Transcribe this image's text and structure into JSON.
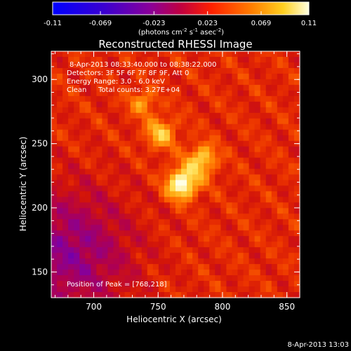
{
  "chart_data": {
    "type": "heatmap",
    "title": "Reconstructed RHESSI Image",
    "xlabel": "Heliocentric X (arcsec)",
    "ylabel": "Heliocentric Y (arcsec)",
    "xlim": [
      667,
      860
    ],
    "ylim": [
      130,
      322
    ],
    "x_ticks": [
      700,
      750,
      800,
      850
    ],
    "y_ticks": [
      150,
      200,
      250,
      300
    ],
    "colorbar": {
      "ticks": [
        "-0.11",
        "-0.069",
        "-0.023",
        "0.023",
        "0.069",
        "0.11"
      ],
      "tick_values": [
        -0.11,
        -0.069,
        -0.023,
        0.023,
        0.069,
        0.11
      ],
      "range": [
        -0.11,
        0.11
      ],
      "units_label": "(photons cm",
      "units_sup1": "-2",
      "units_mid": " s",
      "units_sup2": "-1",
      "units_mid2": " asec",
      "units_sup3": "-2",
      "units_end": ")"
    },
    "annotations": {
      "time_range": "8-Apr-2013 08:33:40.000 to 08:38:22.000",
      "detectors": "Detectors: 3F 5F 6F 7F 8F 9F, Att 0",
      "energy": "Energy Range: 3.0 - 6.0 keV",
      "clean_label": "Clean",
      "total_counts": "Total counts: 3.27E+04",
      "peak": "Position of Peak = [768,218]"
    },
    "peak_position": [
      768,
      218
    ],
    "sources": [
      {
        "x": 768,
        "y": 218,
        "amplitude": 0.09,
        "sigma": 8
      },
      {
        "x": 752,
        "y": 258,
        "amplitude": 0.055,
        "sigma": 8
      },
      {
        "x": 738,
        "y": 282,
        "amplitude": 0.04,
        "sigma": 7
      },
      {
        "x": 786,
        "y": 240,
        "amplitude": 0.04,
        "sigma": 7
      },
      {
        "x": 780,
        "y": 232,
        "amplitude": 0.035,
        "sigma": 9
      }
    ],
    "negative_region": {
      "x": 680,
      "y": 165,
      "amplitude": -0.05,
      "sigma": 35
    },
    "background_level": 0.025
  },
  "footer": {
    "timestamp": "8-Apr-2013 13:03"
  }
}
